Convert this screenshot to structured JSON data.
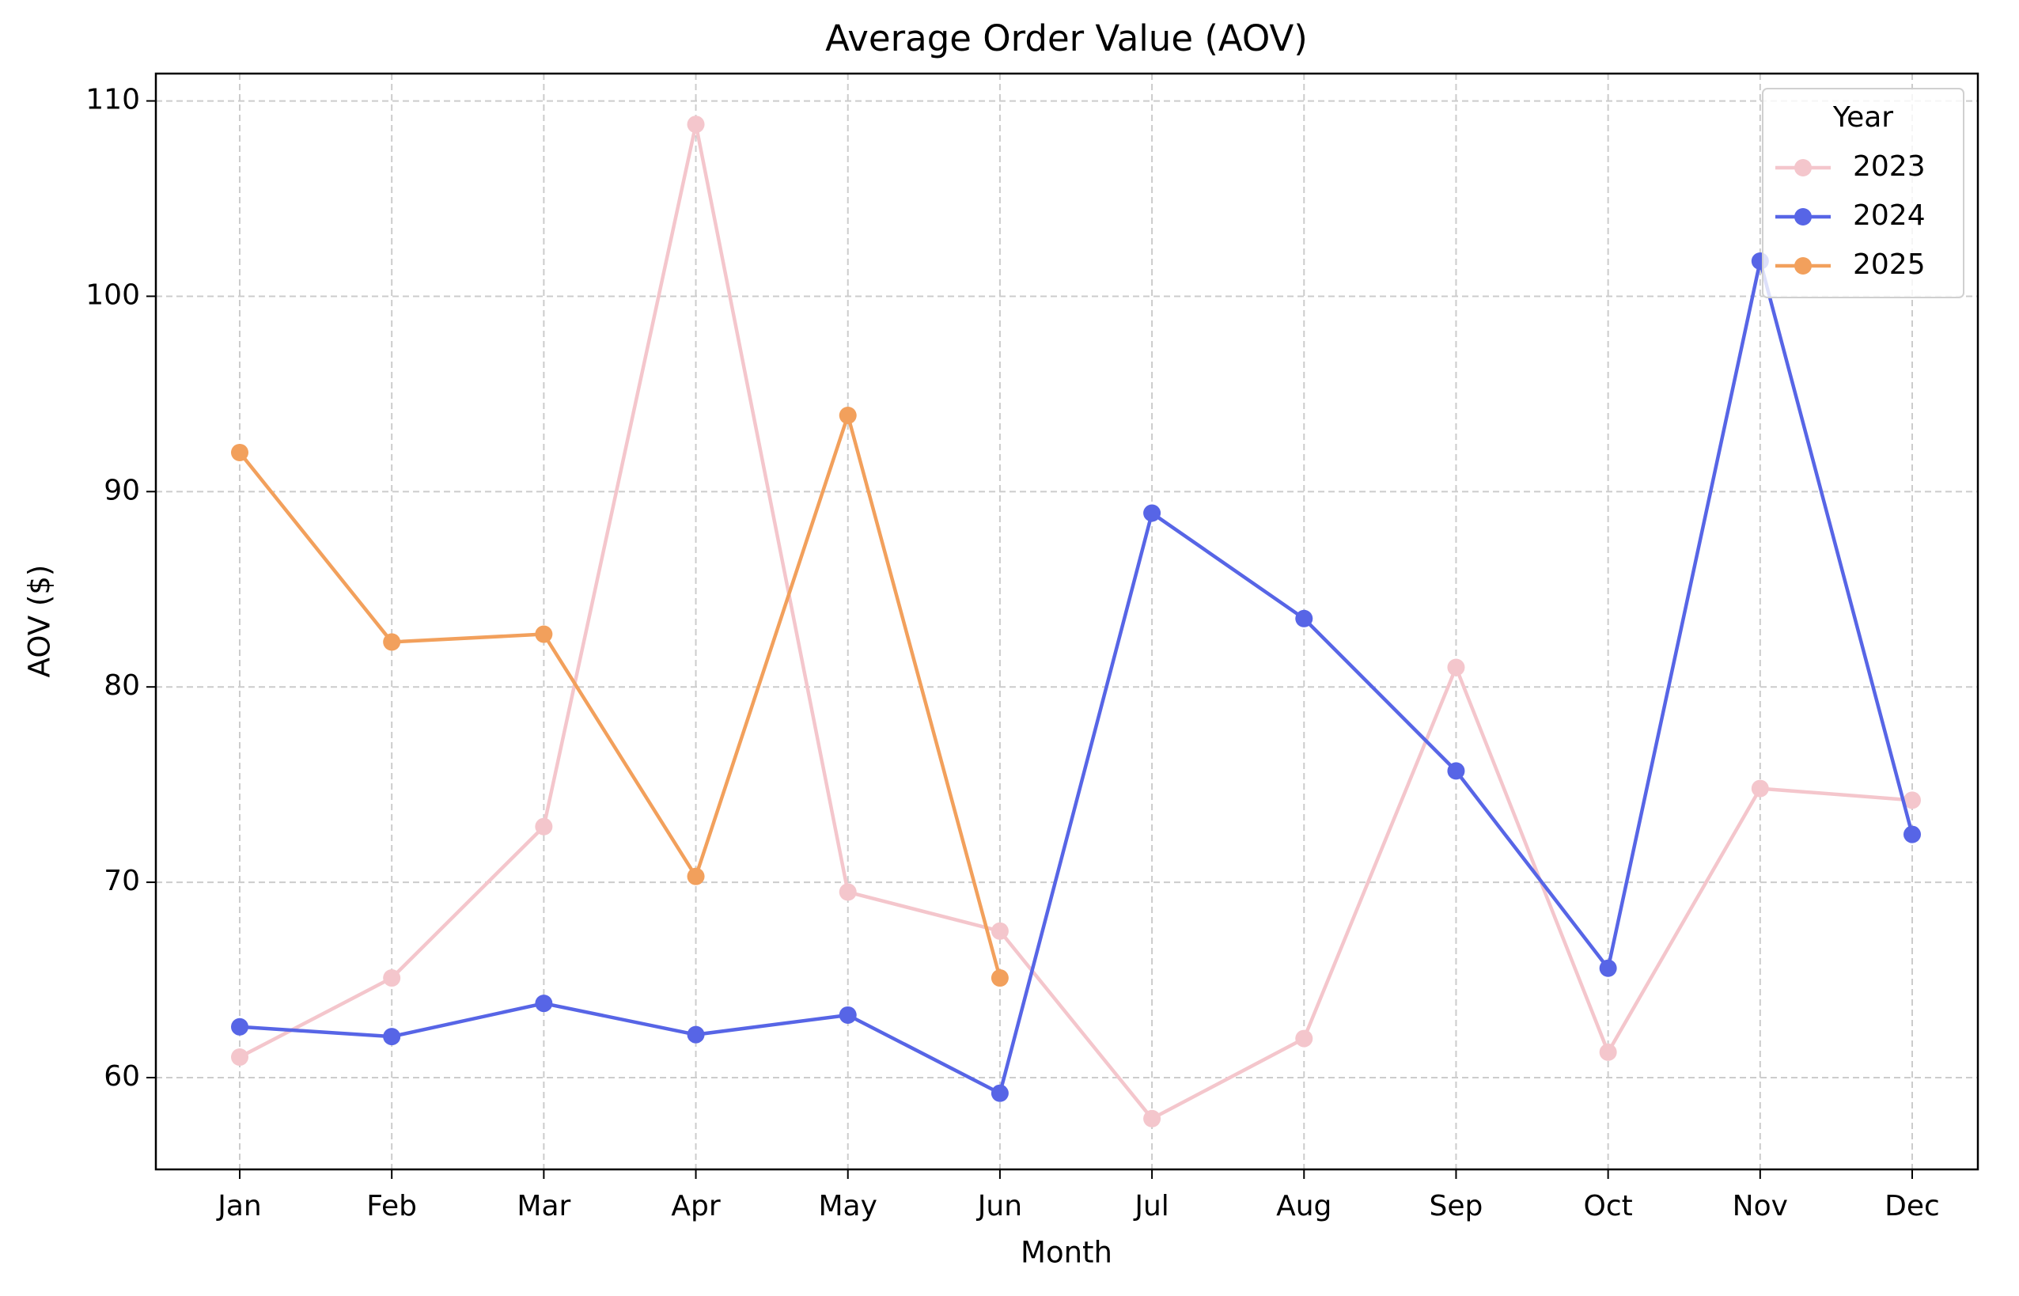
{
  "chart_data": {
    "type": "line",
    "title": "Average Order Value (AOV)",
    "x_label": "Month",
    "y_label": "AOV ($)",
    "categories": [
      "Jan",
      "Feb",
      "Mar",
      "Apr",
      "May",
      "Jun",
      "Jul",
      "Aug",
      "Sep",
      "Oct",
      "Nov",
      "Dec"
    ],
    "series": [
      {
        "name": "2023",
        "color": "#f4c6cc",
        "values": [
          61.05,
          65.1,
          72.85,
          108.8,
          69.5,
          67.5,
          57.9,
          62.0,
          81.0,
          61.3,
          74.8,
          74.2
        ]
      },
      {
        "name": "2024",
        "color": "#5765e6",
        "values": [
          62.6,
          62.1,
          63.8,
          62.2,
          63.2,
          59.2,
          88.9,
          83.5,
          75.7,
          65.6,
          101.8,
          72.45
        ]
      },
      {
        "name": "2025",
        "color": "#f2a05c",
        "values": [
          92.0,
          82.3,
          82.7,
          70.3,
          93.9,
          65.1,
          null,
          null,
          null,
          null,
          null,
          null
        ]
      }
    ],
    "legend_title": "Year",
    "legend": "upper right",
    "ylim": [
      55.3,
      111.4
    ],
    "yticks": [
      60,
      70,
      80,
      90,
      100,
      110
    ],
    "grid": true
  }
}
